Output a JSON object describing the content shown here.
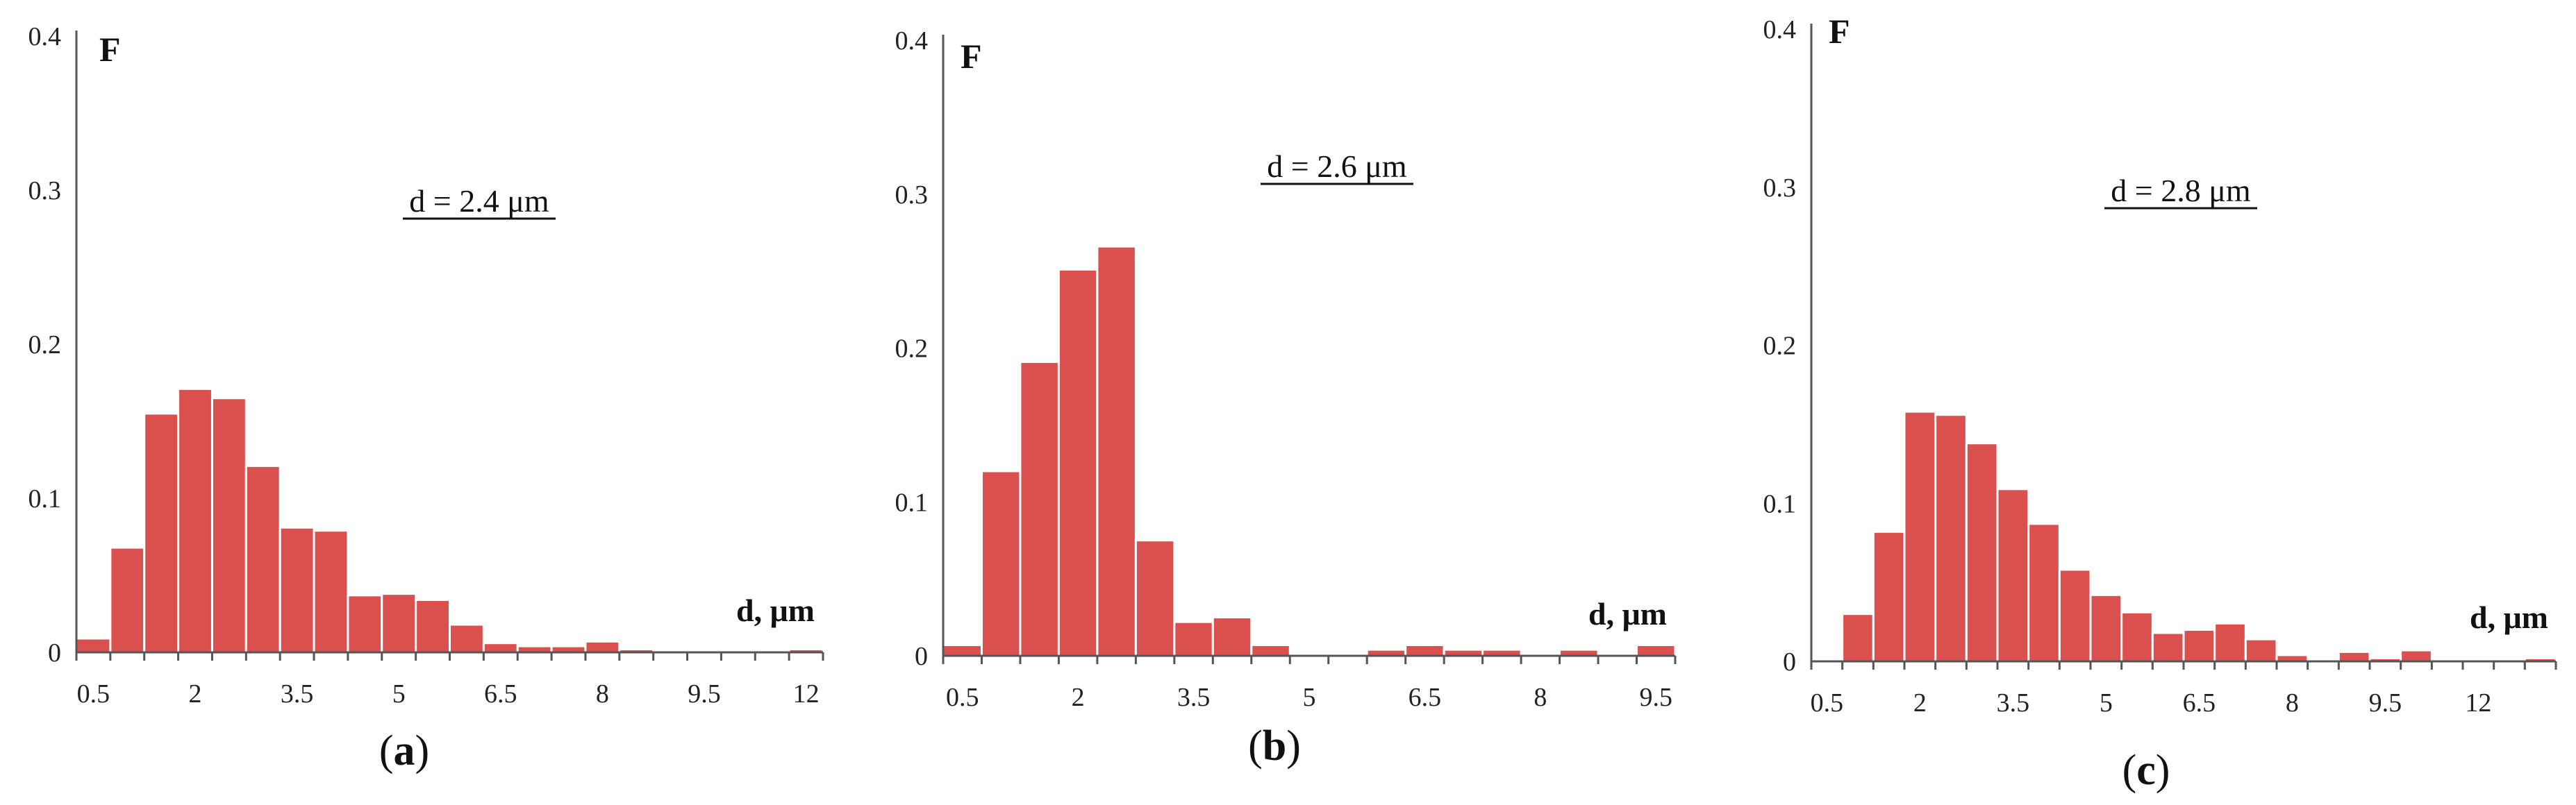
{
  "chart_data": [
    {
      "type": "bar",
      "panel_label": "a",
      "ylabel": "F",
      "xlabel": "d, μm",
      "annotation": "d = 2.4 μm",
      "ylim": [
        0,
        0.4
      ],
      "yticks": [
        "0",
        "0.1",
        "0.2",
        "0.3",
        "0.4"
      ],
      "xticks": [
        "0.5",
        "2",
        "3.5",
        "5",
        "6.5",
        "8",
        "9.5",
        "12"
      ],
      "values": [
        0.009,
        0.068,
        0.155,
        0.171,
        0.165,
        0.121,
        0.081,
        0.079,
        0.037,
        0.038,
        0.034,
        0.018,
        0.006,
        0.004,
        0.004,
        0.007,
        0.002,
        0.001,
        0.0,
        0.0,
        0.001,
        0.002
      ]
    },
    {
      "type": "bar",
      "panel_label": "b",
      "ylabel": "F",
      "xlabel": "d, μm",
      "annotation": "d = 2.6 μm",
      "ylim": [
        0,
        0.4
      ],
      "yticks": [
        "0",
        "0.1",
        "0.2",
        "0.3",
        "0.4"
      ],
      "xticks": [
        "0.5",
        "2",
        "3.5",
        "5",
        "6.5",
        "8",
        "9.5"
      ],
      "values": [
        0.007,
        0.12,
        0.191,
        0.251,
        0.266,
        0.075,
        0.022,
        0.025,
        0.007,
        0.0,
        0.0,
        0.004,
        0.007,
        0.004,
        0.004,
        0.0,
        0.004,
        0.0,
        0.007
      ]
    },
    {
      "type": "bar",
      "panel_label": "c",
      "ylabel": "F",
      "xlabel": "d, μm",
      "annotation": "d = 2.8 μm",
      "ylim": [
        0,
        0.4
      ],
      "yticks": [
        "0",
        "0.1",
        "0.2",
        "0.3",
        "0.4"
      ],
      "xticks": [
        "0.5",
        "2",
        "3.5",
        "5",
        "6.5",
        "8",
        "9.5",
        "12"
      ],
      "values": [
        0.001,
        0.03,
        0.082,
        0.158,
        0.156,
        0.138,
        0.109,
        0.087,
        0.058,
        0.042,
        0.031,
        0.018,
        0.02,
        0.024,
        0.014,
        0.004,
        0.0,
        0.006,
        0.002,
        0.007,
        0.0,
        0.0,
        0.0,
        0.002
      ]
    }
  ]
}
